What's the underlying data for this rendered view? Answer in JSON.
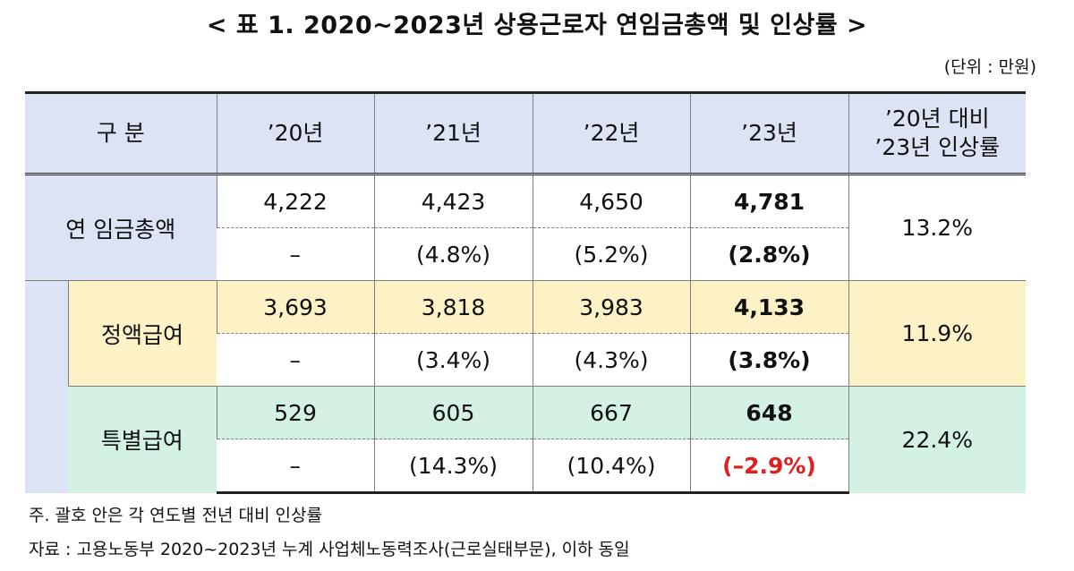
{
  "title": "< 표 1. 2020~2023년 상용근로자 연임금총액 및 인상률 >",
  "unit": "(단위 : 만원)",
  "table": {
    "header": {
      "category": "구 분",
      "y20": "’20년",
      "y21": "’21년",
      "y22": "’22년",
      "y23": "’23년",
      "change_line1": "’20년 대비",
      "change_line2": "’23년 인상률"
    },
    "rows": [
      {
        "label": "연 임금총액",
        "values": [
          "4,222",
          "4,423",
          "4,650",
          "4,781"
        ],
        "rates": [
          "–",
          "(4.8%)",
          "(5.2%)",
          "(2.8%)"
        ],
        "change": "13.2%"
      },
      {
        "label": "정액급여",
        "values": [
          "3,693",
          "3,818",
          "3,983",
          "4,133"
        ],
        "rates": [
          "–",
          "(3.4%)",
          "(4.3%)",
          "(3.8%)"
        ],
        "change": "11.9%"
      },
      {
        "label": "특별급여",
        "values": [
          "529",
          "605",
          "667",
          "648"
        ],
        "rates": [
          "–",
          "(14.3%)",
          "(10.4%)",
          "(–2.9%)"
        ],
        "change": "22.4%"
      }
    ]
  },
  "notes": {
    "note1": "주. 괄호 안은 각 연도별 전년 대비 인상률",
    "note2": "자료 : 고용노동부 2020~2023년 누계 사업체노동력조사(근로실태부문), 이하 동일"
  },
  "colors": {
    "header_bg": "#dce3f4",
    "regular_pay_bg": "#fdf1c6",
    "special_pay_bg": "#d3f2e3",
    "negative_text": "#e11d1d"
  }
}
